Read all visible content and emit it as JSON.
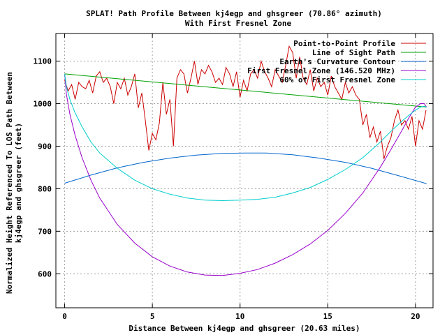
{
  "chart_data": {
    "type": "line",
    "title": "SPLAT! Path Profile Between kj4egp and ghsgreer (70.86° azimuth)",
    "subtitle": "With First Fresnel Zone",
    "xlabel": "Distance Between kj4egp and ghsgreer (20.63 miles)",
    "ylabel_line1": "Normalized Height Referenced To LOS Path Between",
    "ylabel_line2": "kj4egp and ghsgreer (feet)",
    "xlim": [
      -0.5,
      21
    ],
    "ylim": [
      520,
      1165
    ],
    "x_ticks": [
      0,
      5,
      10,
      15,
      20
    ],
    "y_ticks": [
      600,
      700,
      800,
      900,
      1000,
      1100
    ],
    "grid": true,
    "legend_position": "top-right",
    "series": [
      {
        "name": "Point-to-Point Profile",
        "color": "#cc0000",
        "x": [
          0,
          0.2,
          0.4,
          0.6,
          0.8,
          1.0,
          1.2,
          1.4,
          1.6,
          1.8,
          2.0,
          2.2,
          2.4,
          2.6,
          2.8,
          3.0,
          3.2,
          3.4,
          3.6,
          3.8,
          4.0,
          4.2,
          4.4,
          4.6,
          4.8,
          5.0,
          5.2,
          5.4,
          5.6,
          5.8,
          6.0,
          6.2,
          6.4,
          6.6,
          6.8,
          7.0,
          7.2,
          7.4,
          7.6,
          7.8,
          8.0,
          8.2,
          8.4,
          8.6,
          8.8,
          9.0,
          9.2,
          9.4,
          9.6,
          9.8,
          10.0,
          10.2,
          10.4,
          10.6,
          10.8,
          11.0,
          11.2,
          11.4,
          11.6,
          11.8,
          12.0,
          12.2,
          12.4,
          12.6,
          12.8,
          13.0,
          13.2,
          13.4,
          13.6,
          13.8,
          14.0,
          14.2,
          14.4,
          14.6,
          14.8,
          15.0,
          15.2,
          15.4,
          15.6,
          15.8,
          16.0,
          16.2,
          16.4,
          16.6,
          16.8,
          17.0,
          17.2,
          17.4,
          17.6,
          17.8,
          18.0,
          18.2,
          18.4,
          18.6,
          18.8,
          19.0,
          19.2,
          19.4,
          19.6,
          19.8,
          20.0,
          20.2,
          20.4,
          20.6
        ],
        "values": [
          1055,
          1030,
          1045,
          1010,
          1050,
          1040,
          1035,
          1055,
          1025,
          1065,
          1075,
          1050,
          1060,
          1040,
          1000,
          1050,
          1035,
          1060,
          1020,
          1040,
          1070,
          990,
          1025,
          960,
          890,
          930,
          915,
          955,
          1050,
          975,
          1010,
          900,
          1060,
          1080,
          1070,
          1025,
          1060,
          1100,
          1045,
          1080,
          1070,
          1090,
          1075,
          1050,
          1060,
          1045,
          1085,
          1070,
          1040,
          1075,
          1015,
          1055,
          1030,
          1070,
          1080,
          1060,
          1100,
          1075,
          1060,
          1040,
          1080,
          1065,
          1050,
          1090,
          1135,
          1120,
          1060,
          1110,
          1060,
          1045,
          1080,
          1030,
          1060,
          1040,
          1050,
          1020,
          1065,
          1040,
          1025,
          1010,
          1050,
          1025,
          1040,
          1020,
          1010,
          950,
          975,
          920,
          945,
          910,
          935,
          870,
          900,
          920,
          960,
          985,
          950,
          960,
          940,
          970,
          900,
          960,
          940,
          985
        ]
      },
      {
        "name": "Line of Sight Path",
        "color": "#00a000",
        "x": [
          0,
          20.63
        ],
        "values": [
          1070,
          992
        ]
      },
      {
        "name": "Earth's Curvature Contour",
        "color": "#0066cc",
        "x": [
          0,
          1.5,
          3,
          4.5,
          6,
          7.5,
          9,
          10.3,
          11.5,
          13,
          14.5,
          16,
          17.5,
          19,
          20.63
        ],
        "values": [
          813,
          832,
          849,
          862,
          872,
          879,
          883,
          884,
          884,
          880,
          872,
          862,
          848,
          831,
          812
        ]
      },
      {
        "name": "First Fresnel Zone (146.520 MHz)",
        "color": "#9900cc",
        "x": [
          0,
          0.1,
          0.3,
          0.6,
          1,
          1.5,
          2,
          3,
          4,
          5,
          6,
          7,
          8,
          9,
          10,
          11,
          12,
          13,
          14,
          15,
          16,
          17,
          18,
          18.6,
          19.2,
          19.6,
          20,
          20.3,
          20.5,
          20.63
        ],
        "values": [
          1070,
          1022,
          975,
          925,
          872,
          820,
          778,
          716,
          672,
          640,
          618,
          604,
          597,
          596,
          601,
          610,
          625,
          645,
          670,
          702,
          742,
          790,
          851,
          892,
          935,
          965,
          992,
          1000,
          1000,
          992
        ]
      },
      {
        "name": "60% of First Fresnel Zone",
        "color": "#00cccc",
        "x": [
          0,
          0.1,
          0.3,
          0.6,
          1,
          1.5,
          2,
          3,
          4,
          5,
          6,
          7,
          8,
          9,
          10,
          11,
          12,
          13,
          14,
          15,
          16,
          17,
          18,
          18.6,
          19.2,
          19.6,
          20,
          20.3,
          20.5,
          20.63
        ],
        "values": [
          1070,
          1040,
          1010,
          978,
          945,
          910,
          884,
          848,
          820,
          800,
          787,
          778,
          773,
          772,
          773,
          775,
          780,
          790,
          803,
          822,
          845,
          873,
          910,
          935,
          958,
          972,
          985,
          992,
          994,
          992
        ]
      }
    ]
  }
}
